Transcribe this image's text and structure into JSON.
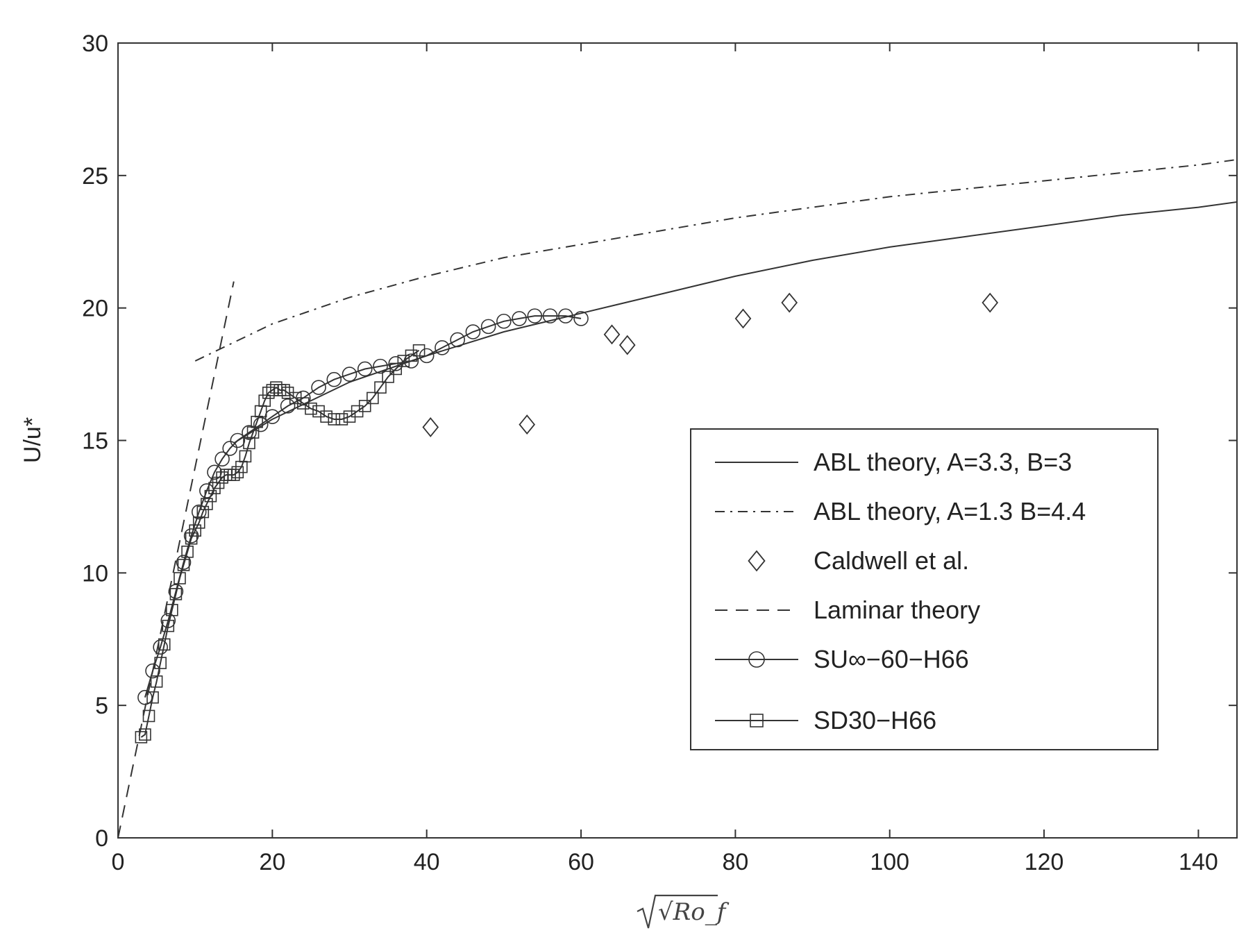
{
  "chart_data": {
    "type": "scatter",
    "xlabel": "√Ro_f",
    "ylabel": "U/u*",
    "xlim": [
      0,
      145
    ],
    "ylim": [
      0,
      30
    ],
    "xticks": [
      0,
      20,
      40,
      60,
      80,
      100,
      120,
      140
    ],
    "yticks": [
      0,
      5,
      10,
      15,
      20,
      25,
      30
    ],
    "grid": false,
    "legend_position": "lower-right",
    "series": [
      {
        "name": "ABL theory, A=3.3, B=3",
        "style": "solid-line",
        "x": [
          15,
          20,
          30,
          40,
          50,
          60,
          70,
          80,
          90,
          100,
          110,
          120,
          130,
          140,
          145
        ],
        "y": [
          14.9,
          15.8,
          17.2,
          18.2,
          19.1,
          19.8,
          20.5,
          21.2,
          21.8,
          22.3,
          22.7,
          23.1,
          23.5,
          23.8,
          24.0
        ]
      },
      {
        "name": "ABL theory, A=1.3 B=4.4",
        "style": "dash-dot-line",
        "x": [
          10,
          20,
          30,
          40,
          50,
          60,
          70,
          80,
          90,
          100,
          110,
          120,
          130,
          140,
          145
        ],
        "y": [
          18.0,
          19.4,
          20.4,
          21.2,
          21.9,
          22.4,
          22.9,
          23.4,
          23.8,
          24.2,
          24.5,
          24.8,
          25.1,
          25.4,
          25.6
        ]
      },
      {
        "name": "Caldwell et al.",
        "style": "diamond-markers",
        "x": [
          40.5,
          53,
          64,
          66,
          81,
          87,
          113
        ],
        "y": [
          15.5,
          15.6,
          19.0,
          18.6,
          19.6,
          20.2,
          20.2
        ]
      },
      {
        "name": "Laminar theory",
        "style": "dashed-line",
        "x": [
          0,
          15
        ],
        "y": [
          0,
          21
        ]
      },
      {
        "name": "SU∞−60−H66",
        "style": "line-circles",
        "x": [
          3.5,
          4.5,
          5.5,
          6.5,
          7.5,
          8.5,
          9.5,
          10.5,
          11.5,
          12.5,
          13.5,
          14.5,
          15.5,
          17,
          18.5,
          20,
          22,
          24,
          26,
          28,
          30,
          32,
          34,
          36,
          38,
          40,
          42,
          44,
          46,
          48,
          50,
          52,
          54,
          56,
          58,
          60
        ],
        "y": [
          5.3,
          6.3,
          7.2,
          8.2,
          9.3,
          10.4,
          11.4,
          12.3,
          13.1,
          13.8,
          14.3,
          14.7,
          15.0,
          15.3,
          15.6,
          15.9,
          16.3,
          16.6,
          17.0,
          17.3,
          17.5,
          17.7,
          17.8,
          17.9,
          18.0,
          18.2,
          18.5,
          18.8,
          19.1,
          19.3,
          19.5,
          19.6,
          19.7,
          19.7,
          19.7,
          19.6
        ]
      },
      {
        "name": "SD30−H66",
        "style": "line-squares",
        "x": [
          3,
          3.5,
          4,
          4.5,
          5,
          5.5,
          6,
          6.5,
          7,
          7.5,
          8,
          8.5,
          9,
          9.5,
          10,
          10.5,
          11,
          11.5,
          12,
          12.5,
          13,
          13.5,
          14,
          14.5,
          15,
          15.5,
          16,
          16.5,
          17,
          17.5,
          18,
          18.5,
          19,
          19.5,
          20,
          20.5,
          21,
          21.5,
          22,
          23,
          24,
          25,
          26,
          27,
          28,
          29,
          30,
          31,
          32,
          33,
          34,
          35,
          36,
          37,
          38,
          39
        ],
        "y": [
          3.8,
          3.9,
          4.6,
          5.3,
          5.9,
          6.6,
          7.3,
          8.0,
          8.6,
          9.2,
          9.8,
          10.3,
          10.8,
          11.3,
          11.6,
          11.9,
          12.3,
          12.6,
          12.9,
          13.2,
          13.4,
          13.6,
          13.7,
          13.7,
          13.7,
          13.8,
          14.0,
          14.4,
          14.9,
          15.3,
          15.7,
          16.1,
          16.5,
          16.8,
          16.9,
          17.0,
          16.9,
          16.9,
          16.8,
          16.6,
          16.4,
          16.2,
          16.1,
          15.9,
          15.8,
          15.8,
          15.9,
          16.1,
          16.3,
          16.6,
          17.0,
          17.4,
          17.7,
          18.0,
          18.2,
          18.4
        ]
      }
    ]
  }
}
